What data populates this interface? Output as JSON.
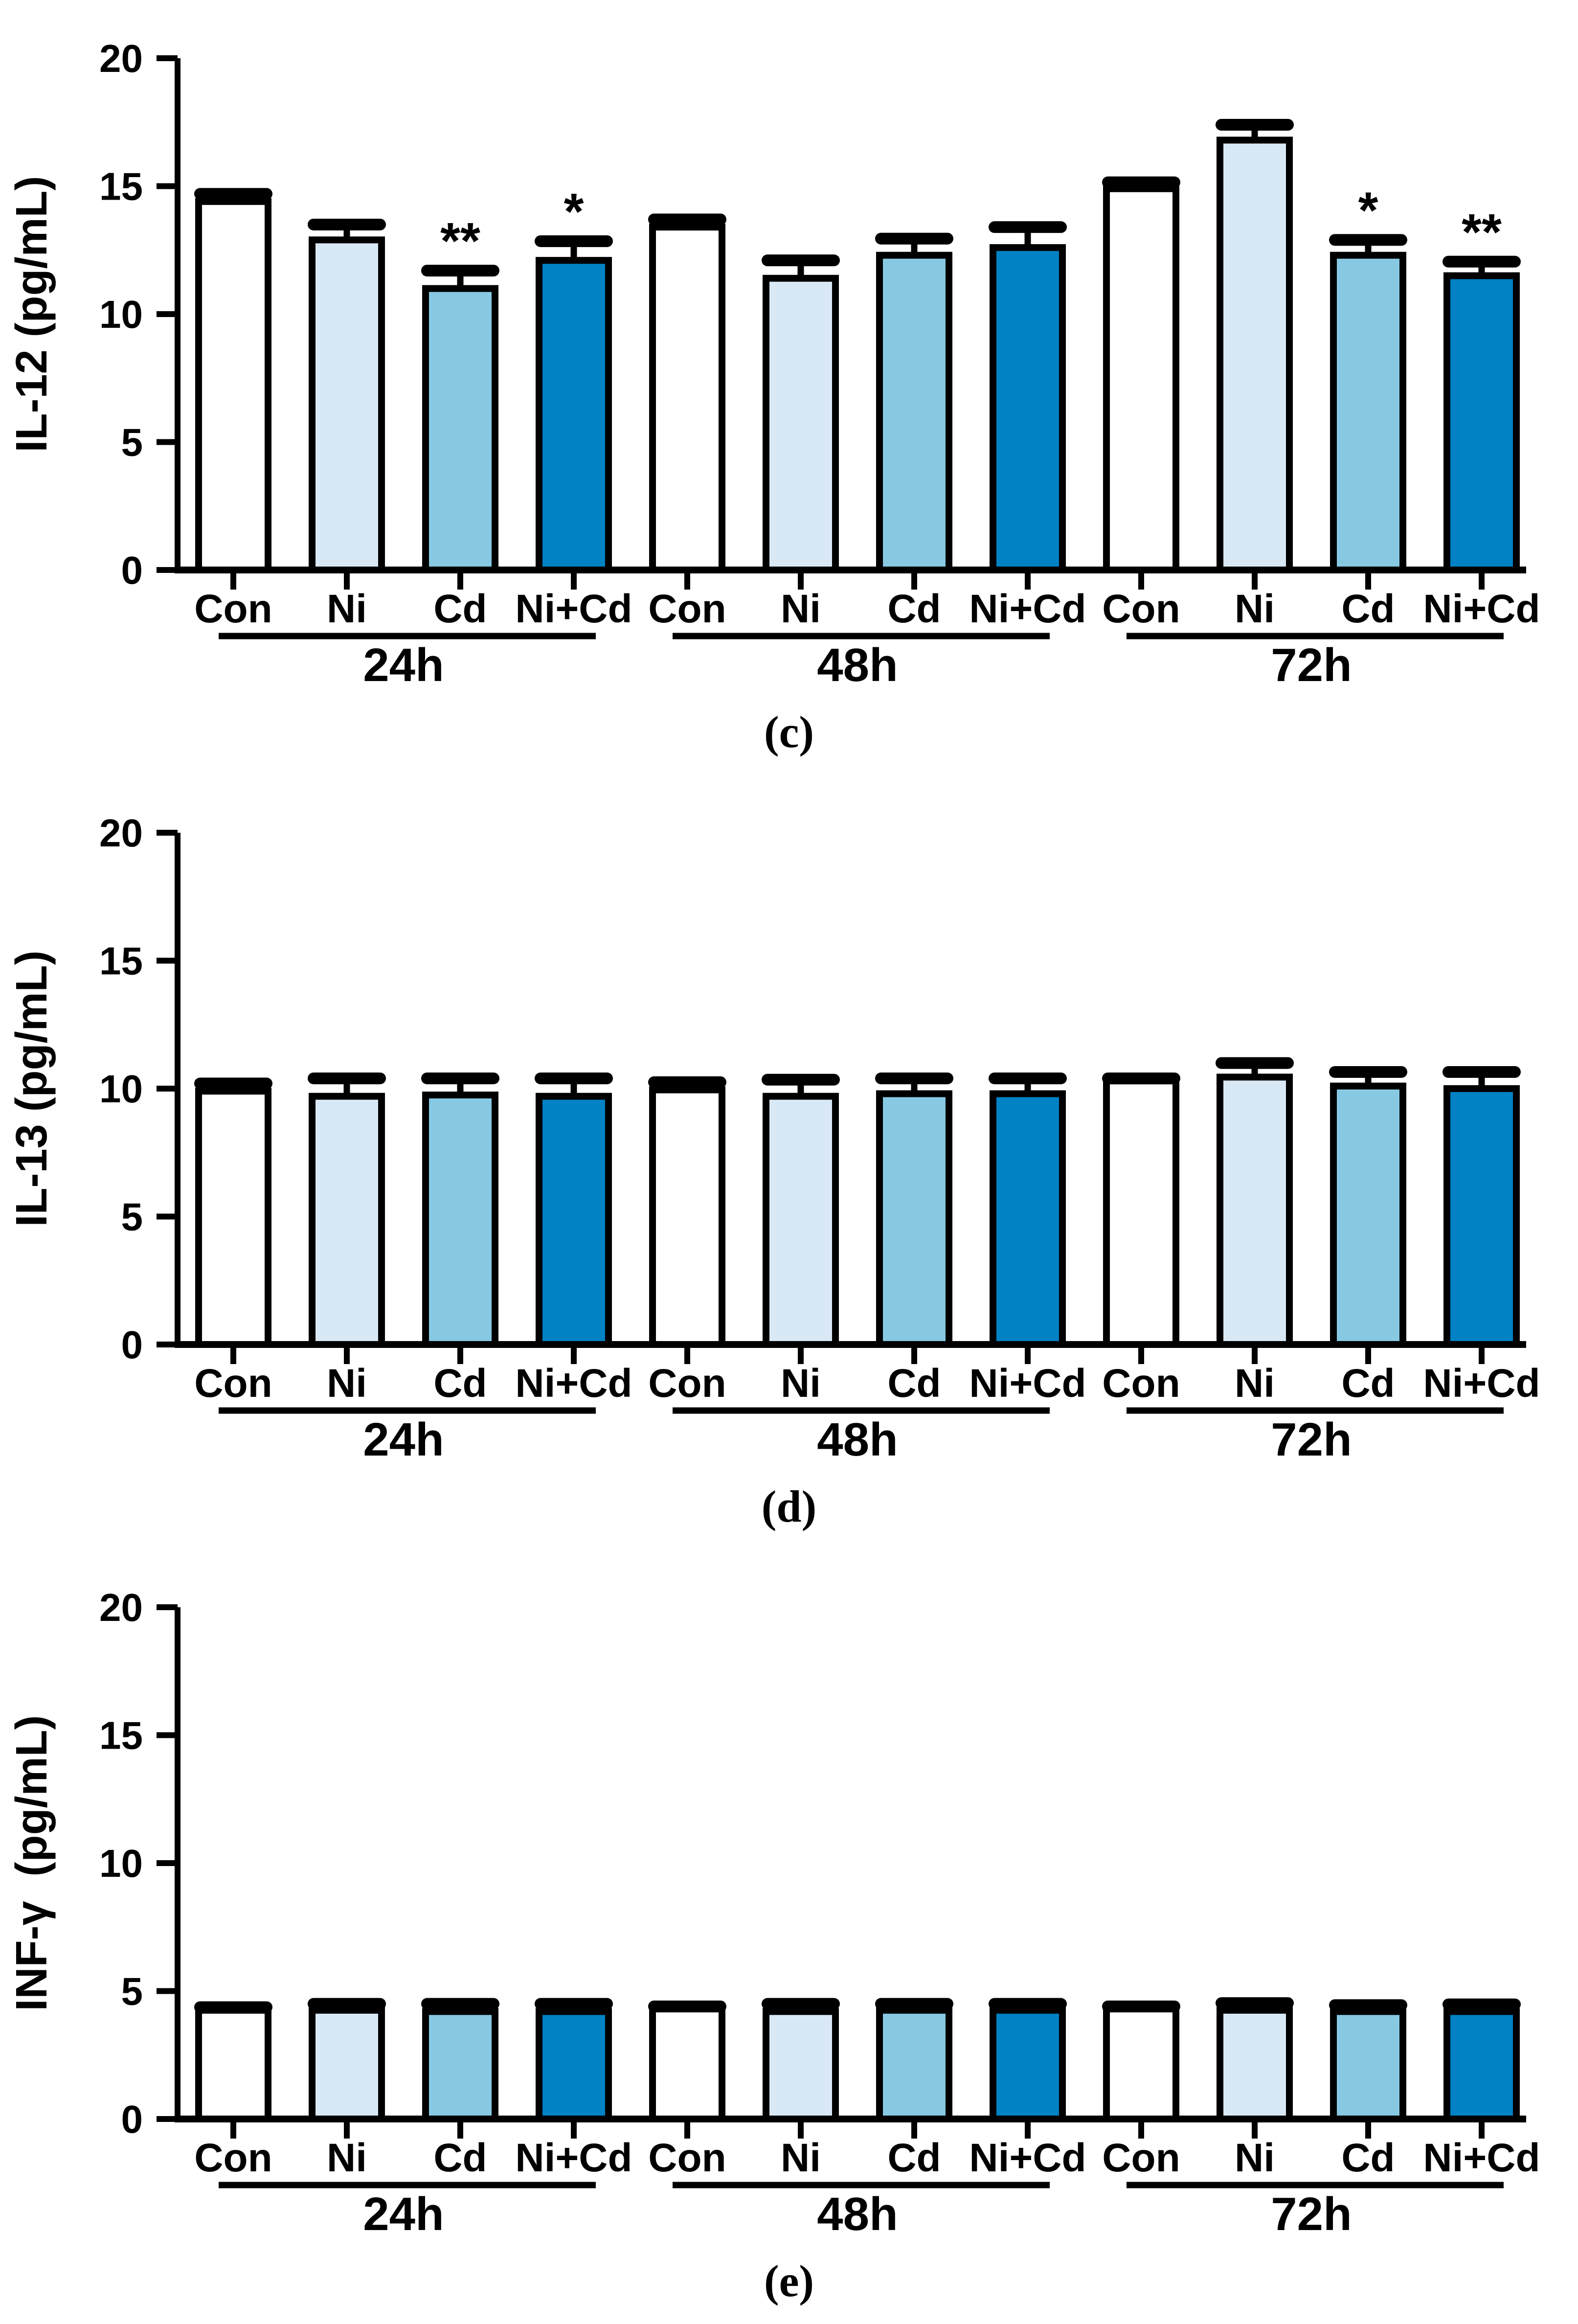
{
  "figure": {
    "background": "#FFFFFF",
    "text_color": "#000000",
    "panel_labels": [
      "(c)",
      "(d)",
      "(e)"
    ]
  },
  "bar_style": {
    "outline_color": "#000000",
    "category_fills": {
      "Con": "#FFFFFF",
      "Ni": "#D9E8F5",
      "Cd": "#87C9E2",
      "Ni+Cd": "#0082C4"
    }
  },
  "chart_data": [
    {
      "type": "bar",
      "panel_label": "(c)",
      "title": "",
      "xlabel": "",
      "ylabel": "IL-12 (pg/mL)",
      "ylim": [
        0,
        20
      ],
      "yticks": [
        0,
        5,
        10,
        15,
        20
      ],
      "grid": false,
      "legend": "none",
      "categories": [
        "Con",
        "Ni",
        "Cd",
        "Ni+Cd"
      ],
      "group_labels": [
        "24h",
        "48h",
        "72h"
      ],
      "groups": [
        {
          "label": "24h",
          "bars": [
            {
              "category": "Con",
              "value": 14.4,
              "error": 0.3,
              "sig": ""
            },
            {
              "category": "Ni",
              "value": 12.9,
              "error": 0.6,
              "sig": ""
            },
            {
              "category": "Cd",
              "value": 11.0,
              "error": 0.7,
              "sig": "**"
            },
            {
              "category": "Ni+Cd",
              "value": 12.1,
              "error": 0.75,
              "sig": "*"
            }
          ]
        },
        {
          "label": "48h",
          "bars": [
            {
              "category": "Con",
              "value": 13.4,
              "error": 0.3,
              "sig": ""
            },
            {
              "category": "Ni",
              "value": 11.4,
              "error": 0.7,
              "sig": ""
            },
            {
              "category": "Cd",
              "value": 12.3,
              "error": 0.65,
              "sig": ""
            },
            {
              "category": "Ni+Cd",
              "value": 12.6,
              "error": 0.8,
              "sig": ""
            }
          ]
        },
        {
          "label": "72h",
          "bars": [
            {
              "category": "Con",
              "value": 14.9,
              "error": 0.25,
              "sig": ""
            },
            {
              "category": "Ni",
              "value": 16.8,
              "error": 0.6,
              "sig": ""
            },
            {
              "category": "Cd",
              "value": 12.3,
              "error": 0.6,
              "sig": "*"
            },
            {
              "category": "Ni+Cd",
              "value": 11.5,
              "error": 0.55,
              "sig": "**"
            }
          ]
        }
      ]
    },
    {
      "type": "bar",
      "panel_label": "(d)",
      "title": "",
      "xlabel": "",
      "ylabel": "IL-13 (pg/mL)",
      "ylim": [
        0,
        20
      ],
      "yticks": [
        0,
        5,
        10,
        15,
        20
      ],
      "grid": false,
      "legend": "none",
      "categories": [
        "Con",
        "Ni",
        "Cd",
        "Ni+Cd"
      ],
      "group_labels": [
        "24h",
        "48h",
        "72h"
      ],
      "groups": [
        {
          "label": "24h",
          "bars": [
            {
              "category": "Con",
              "value": 9.9,
              "error": 0.3,
              "sig": ""
            },
            {
              "category": "Ni",
              "value": 9.7,
              "error": 0.7,
              "sig": ""
            },
            {
              "category": "Cd",
              "value": 9.75,
              "error": 0.65,
              "sig": ""
            },
            {
              "category": "Ni+Cd",
              "value": 9.7,
              "error": 0.7,
              "sig": ""
            }
          ]
        },
        {
          "label": "48h",
          "bars": [
            {
              "category": "Con",
              "value": 9.95,
              "error": 0.3,
              "sig": ""
            },
            {
              "category": "Ni",
              "value": 9.7,
              "error": 0.65,
              "sig": ""
            },
            {
              "category": "Cd",
              "value": 9.8,
              "error": 0.6,
              "sig": ""
            },
            {
              "category": "Ni+Cd",
              "value": 9.8,
              "error": 0.6,
              "sig": ""
            }
          ]
        },
        {
          "label": "72h",
          "bars": [
            {
              "category": "Con",
              "value": 10.3,
              "error": 0.1,
              "sig": ""
            },
            {
              "category": "Ni",
              "value": 10.45,
              "error": 0.55,
              "sig": ""
            },
            {
              "category": "Cd",
              "value": 10.1,
              "error": 0.55,
              "sig": ""
            },
            {
              "category": "Ni+Cd",
              "value": 10.0,
              "error": 0.65,
              "sig": ""
            }
          ]
        }
      ]
    },
    {
      "type": "bar",
      "panel_label": "(e)",
      "title": "",
      "xlabel": "",
      "ylabel": "INF-γ  (pg/mL)",
      "ylim": [
        0,
        20
      ],
      "yticks": [
        0,
        5,
        10,
        15,
        20
      ],
      "grid": false,
      "legend": "none",
      "categories": [
        "Con",
        "Ni",
        "Cd",
        "Ni+Cd"
      ],
      "group_labels": [
        "24h",
        "48h",
        "72h"
      ],
      "groups": [
        {
          "label": "24h",
          "bars": [
            {
              "category": "Con",
              "value": 4.25,
              "error": 0.12,
              "sig": ""
            },
            {
              "category": "Ni",
              "value": 4.25,
              "error": 0.25,
              "sig": ""
            },
            {
              "category": "Cd",
              "value": 4.2,
              "error": 0.3,
              "sig": ""
            },
            {
              "category": "Ni+Cd",
              "value": 4.2,
              "error": 0.3,
              "sig": ""
            }
          ]
        },
        {
          "label": "48h",
          "bars": [
            {
              "category": "Con",
              "value": 4.3,
              "error": 0.1,
              "sig": ""
            },
            {
              "category": "Ni",
              "value": 4.2,
              "error": 0.3,
              "sig": ""
            },
            {
              "category": "Cd",
              "value": 4.25,
              "error": 0.25,
              "sig": ""
            },
            {
              "category": "Ni+Cd",
              "value": 4.25,
              "error": 0.25,
              "sig": ""
            }
          ]
        },
        {
          "label": "72h",
          "bars": [
            {
              "category": "Con",
              "value": 4.3,
              "error": 0.1,
              "sig": ""
            },
            {
              "category": "Ni",
              "value": 4.25,
              "error": 0.28,
              "sig": ""
            },
            {
              "category": "Cd",
              "value": 4.2,
              "error": 0.25,
              "sig": ""
            },
            {
              "category": "Ni+Cd",
              "value": 4.2,
              "error": 0.28,
              "sig": ""
            }
          ]
        }
      ]
    }
  ]
}
